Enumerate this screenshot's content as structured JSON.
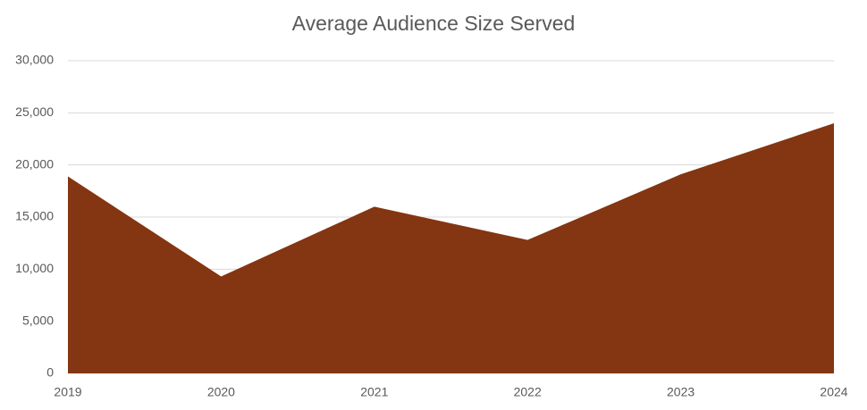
{
  "chart_data": {
    "type": "area",
    "title": "Average Audience Size Served",
    "categories": [
      "2019",
      "2020",
      "2021",
      "2022",
      "2023",
      "2024"
    ],
    "values": [
      18900,
      9300,
      16000,
      12800,
      19100,
      24000
    ],
    "color": "#843511",
    "ylim": [
      0,
      30000
    ],
    "yticks": [
      0,
      {
        "value": 5000,
        "label": "5,000"
      },
      {
        "value": 10000,
        "label": "10,000"
      },
      {
        "value": 15000,
        "label": "15,000"
      },
      {
        "value": 20000,
        "label": "20,000"
      },
      {
        "value": 25000,
        "label": "25,000"
      },
      {
        "value": 30000,
        "label": "30,000"
      }
    ],
    "grid": true
  }
}
